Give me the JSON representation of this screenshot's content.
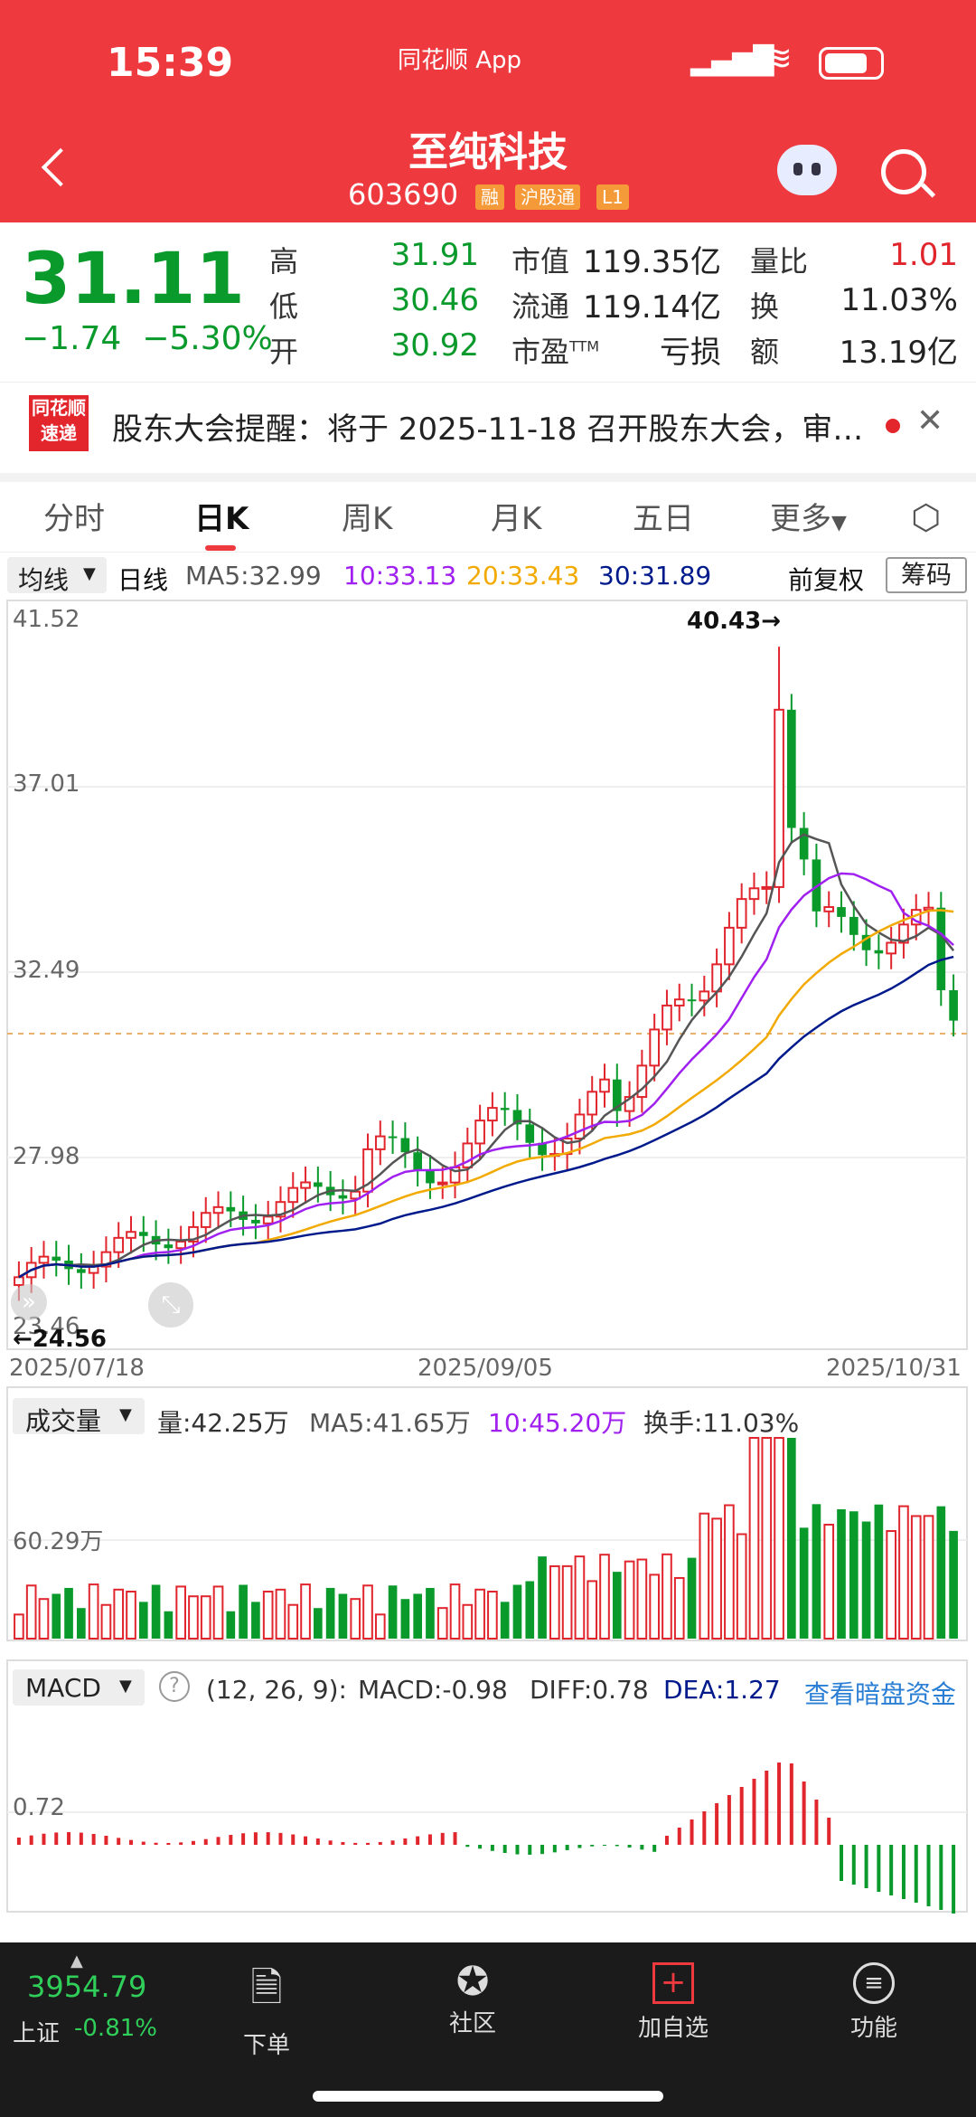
{
  "status": {
    "time": "15:39",
    "app_name": "同花顺 App"
  },
  "header": {
    "title": "至纯科技",
    "code": "603690",
    "tags": [
      "融",
      "沪股通",
      "L1"
    ]
  },
  "quote": {
    "price": "31.11",
    "change": "−1.74",
    "change_pct": "−5.30%",
    "high_label": "高",
    "high": "31.91",
    "low_label": "低",
    "low": "30.46",
    "open_label": "开",
    "open": "30.92",
    "mktcap_label": "市值",
    "mktcap": "119.35亿",
    "float_label": "流通",
    "float": "119.14亿",
    "pe_label": "市盈",
    "pe_sup": "TTM",
    "pe": "亏损",
    "volratio_label": "量比",
    "volratio": "1.01",
    "turnover_label": "换",
    "turnover": "11.03%",
    "amount_label": "额",
    "amount": "13.19亿"
  },
  "notice": {
    "logo_top": "同花顺",
    "logo_bottom": "速递",
    "text": "股东大会提醒：将于 2025-11-18 召开股东大会，审…"
  },
  "tabs": [
    "分时",
    "日K",
    "周K",
    "月K",
    "五日",
    "更多"
  ],
  "kline_bar": {
    "selector": "均线",
    "period": "日线",
    "ma5": "MA5:32.99",
    "ma10": "10:33.13",
    "ma20": "20:33.43",
    "ma30": "30:31.89",
    "adjust": "前复权",
    "chip": "筹码"
  },
  "main_chart": {
    "y_labels": [
      "41.52",
      "37.01",
      "32.49",
      "27.98",
      "23.46"
    ],
    "max_label": "40.43→",
    "min_label": "←24.56",
    "x_labels": [
      "2025/07/18",
      "2025/09/05",
      "2025/10/31"
    ]
  },
  "volume_bar": {
    "selector": "成交量",
    "vol": "量:42.25万",
    "ma5": "MA5:41.65万",
    "ma10": "10:45.20万",
    "turn": "换手:11.03%",
    "y_label": "60.29万"
  },
  "macd_bar": {
    "selector": "MACD",
    "params": "(12, 26, 9):",
    "macd": "MACD:-0.98",
    "diff": "DIFF:0.78",
    "dea": "DEA:1.27",
    "link": "查看暗盘资金",
    "y_label": "0.72"
  },
  "tabbar": {
    "index_value": "3954.79",
    "index_name": "上证",
    "index_change": "-0.81%",
    "items": [
      "下单",
      "社区",
      "加自选",
      "功能"
    ]
  },
  "colors": {
    "brand": "#ee3a3f",
    "up": "#e0252d",
    "down": "#0a9a2c",
    "ma5": "#555555",
    "ma10": "#a020f0",
    "ma20": "#f2a900",
    "ma30": "#001a8c"
  }
}
